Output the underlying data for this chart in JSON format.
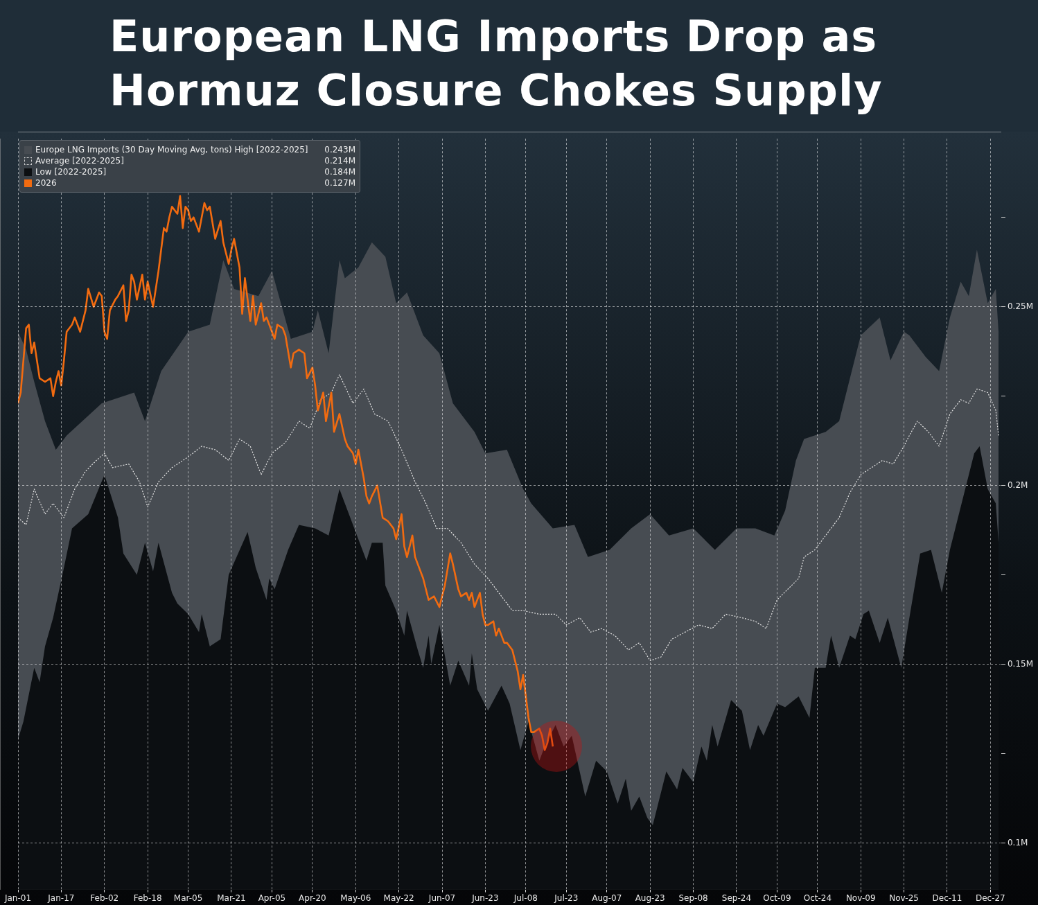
{
  "chart_data": {
    "type": "line",
    "title": "European LNG Imports Drop as Hormuz Closure Chokes Supply",
    "xlim": [
      "--01-01",
      "--12-31"
    ],
    "xticks": [
      {
        "value": "--01-01",
        "label": "Jan-01"
      },
      {
        "value": "--01-17",
        "label": "Jan-17"
      },
      {
        "value": "--02-02",
        "label": "Feb-02"
      },
      {
        "value": "--02-18",
        "label": "Feb-18"
      },
      {
        "value": "--03-05",
        "label": "Mar-05"
      },
      {
        "value": "--03-21",
        "label": "Mar-21"
      },
      {
        "value": "--04-05",
        "label": "Apr-05"
      },
      {
        "value": "--04-20",
        "label": "Apr-20"
      },
      {
        "value": "--05-06",
        "label": "May-06"
      },
      {
        "value": "--05-22",
        "label": "May-22"
      },
      {
        "value": "--06-07",
        "label": "Jun-07"
      },
      {
        "value": "--06-23",
        "label": "Jun-23"
      },
      {
        "value": "--07-08",
        "label": "Jul-08"
      },
      {
        "value": "--07-23",
        "label": "Jul-23"
      },
      {
        "value": "--08-07",
        "label": "Aug-07"
      },
      {
        "value": "--08-23",
        "label": "Aug-23"
      },
      {
        "value": "--09-08",
        "label": "Sep-08"
      },
      {
        "value": "--09-24",
        "label": "Sep-24"
      },
      {
        "value": "--10-09",
        "label": "Oct-09"
      },
      {
        "value": "--10-24",
        "label": "Oct-24"
      },
      {
        "value": "--11-09",
        "label": "Nov-09"
      },
      {
        "value": "--11-25",
        "label": "Nov-25"
      },
      {
        "value": "--12-11",
        "label": "Dec-11"
      },
      {
        "value": "--12-27",
        "label": "Dec-27"
      }
    ],
    "ylim": [
      0.087,
      0.297
    ],
    "yticks": [
      {
        "value": 0.1,
        "label": "0.1M"
      },
      {
        "value": 0.125,
        "label": null
      },
      {
        "value": 0.15,
        "label": "0.15M"
      },
      {
        "value": 0.175,
        "label": null
      },
      {
        "value": 0.2,
        "label": "0.2M"
      },
      {
        "value": 0.225,
        "label": null
      },
      {
        "value": 0.25,
        "label": "0.25M"
      },
      {
        "value": 0.275,
        "label": null
      }
    ],
    "grid": true,
    "legend": "top left",
    "marker": "none",
    "annotations": [
      "0.243M",
      "0.214M",
      "0.184M",
      "0.127M"
    ],
    "series": [
      {
        "name": "Europe LNG Imports (30 Day Moving Avg, tons) High [2022-2025]",
        "type": "area",
        "color": "#474c52",
        "x": [
          "--01-01",
          "--01-04",
          "--01-07",
          "--01-11",
          "--01-15",
          "--01-19",
          "--02-01",
          "--02-13",
          "--02-17",
          "--02-23",
          "--03-05",
          "--03-13",
          "--03-18",
          "--03-22",
          "--03-31",
          "--04-05",
          "--04-12",
          "--04-20",
          "--04-22",
          "--04-26",
          "--04-30",
          "--05-02",
          "--05-07",
          "--05-12",
          "--05-17",
          "--05-21",
          "--05-25",
          "--05-31",
          "--06-06",
          "--06-11",
          "--06-19",
          "--06-23",
          "--07-01",
          "--07-07",
          "--07-10",
          "--07-18",
          "--07-26",
          "--07-31",
          "--08-08",
          "--08-16",
          "--08-23",
          "--08-30",
          "--09-08",
          "--09-16",
          "--09-24",
          "--10-01",
          "--10-08",
          "--10-12",
          "--10-16",
          "--10-19",
          "--10-27",
          "--11-01",
          "--11-05",
          "--11-09",
          "--11-16",
          "--11-20",
          "--11-25",
          "--11-27",
          "--12-03",
          "--12-08",
          "--12-12",
          "--12-16",
          "--12-19",
          "--12-22",
          "--12-26",
          "--12-29",
          "--12-30"
        ],
        "values": [
          0.243,
          0.238,
          0.229,
          0.218,
          0.21,
          0.214,
          0.223,
          0.226,
          0.218,
          0.232,
          0.243,
          0.245,
          0.263,
          0.255,
          0.253,
          0.26,
          0.241,
          0.243,
          0.249,
          0.237,
          0.263,
          0.258,
          0.261,
          0.268,
          0.264,
          0.251,
          0.254,
          0.242,
          0.237,
          0.223,
          0.215,
          0.209,
          0.21,
          0.199,
          0.195,
          0.188,
          0.189,
          0.18,
          0.182,
          0.188,
          0.192,
          0.186,
          0.188,
          0.182,
          0.188,
          0.188,
          0.186,
          0.193,
          0.207,
          0.213,
          0.215,
          0.218,
          0.23,
          0.242,
          0.247,
          0.235,
          0.243,
          0.242,
          0.236,
          0.232,
          0.247,
          0.257,
          0.253,
          0.266,
          0.251,
          0.255,
          0.243
        ]
      },
      {
        "name": "Average [2022-2025]",
        "type": "line",
        "line_style": "dotted",
        "color": "#e4e4e4",
        "x": [
          "--01-01",
          "--01-04",
          "--01-07",
          "--01-11",
          "--01-14",
          "--01-18",
          "--01-22",
          "--01-26",
          "--01-30",
          "--02-02",
          "--02-05",
          "--02-11",
          "--02-15",
          "--02-18",
          "--02-22",
          "--02-27",
          "--03-05",
          "--03-10",
          "--03-15",
          "--03-20",
          "--03-24",
          "--03-28",
          "--04-01",
          "--04-05",
          "--04-10",
          "--04-15",
          "--04-19",
          "--04-23",
          "--04-27",
          "--04-30",
          "--05-05",
          "--05-09",
          "--05-13",
          "--05-18",
          "--05-23",
          "--05-28",
          "--06-01",
          "--06-05",
          "--06-09",
          "--06-14",
          "--06-19",
          "--06-24",
          "--06-28",
          "--07-03",
          "--07-07",
          "--07-13",
          "--07-19",
          "--07-23",
          "--07-28",
          "--08-01",
          "--08-05",
          "--08-10",
          "--08-15",
          "--08-19",
          "--08-23",
          "--08-27",
          "--08-31",
          "--09-05",
          "--09-10",
          "--09-15",
          "--09-20",
          "--09-26",
          "--10-01",
          "--10-05",
          "--10-09",
          "--10-13",
          "--10-17",
          "--10-19",
          "--10-23",
          "--10-27",
          "--11-01",
          "--11-05",
          "--11-09",
          "--11-13",
          "--11-17",
          "--11-21",
          "--11-25",
          "--11-27",
          "--11-30",
          "--12-04",
          "--12-08",
          "--12-12",
          "--12-16",
          "--12-19",
          "--12-22",
          "--12-26",
          "--12-29",
          "--12-30"
        ],
        "values": [
          0.191,
          0.189,
          0.199,
          0.192,
          0.195,
          0.191,
          0.199,
          0.204,
          0.207,
          0.209,
          0.205,
          0.206,
          0.201,
          0.194,
          0.201,
          0.205,
          0.208,
          0.211,
          0.21,
          0.207,
          0.213,
          0.211,
          0.203,
          0.209,
          0.212,
          0.218,
          0.216,
          0.224,
          0.226,
          0.231,
          0.223,
          0.227,
          0.22,
          0.218,
          0.21,
          0.201,
          0.195,
          0.188,
          0.188,
          0.184,
          0.178,
          0.174,
          0.17,
          0.165,
          0.165,
          0.164,
          0.164,
          0.161,
          0.163,
          0.159,
          0.16,
          0.158,
          0.154,
          0.156,
          0.151,
          0.152,
          0.157,
          0.159,
          0.161,
          0.16,
          0.164,
          0.163,
          0.162,
          0.16,
          0.168,
          0.171,
          0.174,
          0.18,
          0.182,
          0.186,
          0.191,
          0.198,
          0.203,
          0.205,
          0.207,
          0.206,
          0.211,
          0.214,
          0.218,
          0.215,
          0.211,
          0.22,
          0.224,
          0.223,
          0.227,
          0.226,
          0.221,
          0.214
        ]
      },
      {
        "name": "Low [2022-2025]",
        "type": "area",
        "color": "#0c0f12",
        "x": [
          "--01-01",
          "--01-03",
          "--01-07",
          "--01-09",
          "--01-11",
          "--01-14",
          "--01-18",
          "--01-21",
          "--01-27",
          "--02-02",
          "--02-07",
          "--02-09",
          "--02-14",
          "--02-17",
          "--02-20",
          "--02-22",
          "--02-27",
          "--03-01",
          "--03-05",
          "--03-09",
          "--03-10",
          "--03-13",
          "--03-17",
          "--03-20",
          "--03-27",
          "--03-30",
          "--04-03",
          "--04-04",
          "--04-06",
          "--04-11",
          "--04-15",
          "--04-21",
          "--04-26",
          "--04-30",
          "--05-06",
          "--05-10",
          "--05-12",
          "--05-16",
          "--05-17",
          "--05-21",
          "--05-24",
          "--05-25",
          "--05-29",
          "--05-31",
          "--06-02",
          "--06-03",
          "--06-06",
          "--06-10",
          "--06-13",
          "--06-17",
          "--06-18",
          "--06-20",
          "--06-24",
          "--06-29",
          "--07-02",
          "--07-06",
          "--07-09",
          "--07-13",
          "--07-15",
          "--07-19",
          "--07-22",
          "--07-25",
          "--07-30",
          "--08-03",
          "--08-07",
          "--08-11",
          "--08-14",
          "--08-16",
          "--08-19",
          "--08-22",
          "--08-24",
          "--08-29",
          "--09-02",
          "--09-04",
          "--09-08",
          "--09-11",
          "--09-13",
          "--09-15",
          "--09-17",
          "--09-22",
          "--09-26",
          "--09-29",
          "--10-02",
          "--10-04",
          "--10-09",
          "--10-12",
          "--10-17",
          "--10-21",
          "--10-23",
          "--10-27",
          "--10-29",
          "--11-01",
          "--11-05",
          "--11-07",
          "--11-10",
          "--11-12",
          "--11-16",
          "--11-19",
          "--11-24",
          "--11-27",
          "--12-01",
          "--12-05",
          "--12-09",
          "--12-12",
          "--12-15",
          "--12-21",
          "--12-23",
          "--12-26",
          "--12-29",
          "--12-30"
        ],
        "values": [
          0.129,
          0.134,
          0.149,
          0.145,
          0.155,
          0.163,
          0.177,
          0.188,
          0.192,
          0.203,
          0.191,
          0.181,
          0.175,
          0.184,
          0.176,
          0.184,
          0.17,
          0.167,
          0.164,
          0.159,
          0.164,
          0.155,
          0.157,
          0.175,
          0.187,
          0.177,
          0.168,
          0.174,
          0.171,
          0.182,
          0.189,
          0.188,
          0.186,
          0.199,
          0.187,
          0.179,
          0.184,
          0.184,
          0.172,
          0.165,
          0.158,
          0.165,
          0.154,
          0.149,
          0.158,
          0.15,
          0.161,
          0.144,
          0.151,
          0.144,
          0.153,
          0.143,
          0.137,
          0.144,
          0.139,
          0.126,
          0.134,
          0.123,
          0.127,
          0.133,
          0.127,
          0.13,
          0.113,
          0.123,
          0.12,
          0.111,
          0.118,
          0.109,
          0.113,
          0.107,
          0.105,
          0.12,
          0.115,
          0.121,
          0.117,
          0.127,
          0.123,
          0.133,
          0.127,
          0.14,
          0.137,
          0.126,
          0.133,
          0.13,
          0.139,
          0.138,
          0.141,
          0.135,
          0.149,
          0.149,
          0.158,
          0.149,
          0.158,
          0.157,
          0.164,
          0.165,
          0.156,
          0.163,
          0.149,
          0.163,
          0.181,
          0.182,
          0.17,
          0.182,
          0.191,
          0.209,
          0.211,
          0.199,
          0.195,
          0.184
        ]
      },
      {
        "name": "2026",
        "type": "line",
        "line_style": "solid",
        "color": "#f26b10",
        "x": [
          "--01-01",
          "--01-02",
          "--01-04",
          "--01-05",
          "--01-06",
          "--01-07",
          "--01-09",
          "--01-11",
          "--01-13",
          "--01-14",
          "--01-15",
          "--01-16",
          "--01-17",
          "--01-18",
          "--01-19",
          "--01-21",
          "--01-22",
          "--01-24",
          "--01-26",
          "--01-27",
          "--01-29",
          "--01-31",
          "--02-01",
          "--02-02",
          "--02-03",
          "--02-04",
          "--02-06",
          "--02-07",
          "--02-09",
          "--02-10",
          "--02-11",
          "--02-12",
          "--02-13",
          "--02-14",
          "--02-16",
          "--02-17",
          "--02-18",
          "--02-20",
          "--02-22",
          "--02-24",
          "--02-25",
          "--02-26",
          "--02-27",
          "--03-01",
          "--03-02",
          "--03-03",
          "--03-04",
          "--03-05",
          "--03-06",
          "--03-07",
          "--03-09",
          "--03-11",
          "--03-12",
          "--03-13",
          "--03-15",
          "--03-17",
          "--03-18",
          "--03-20",
          "--03-21",
          "--03-22",
          "--03-24",
          "--03-25",
          "--03-26",
          "--03-28",
          "--03-29",
          "--03-30",
          "--04-01",
          "--04-02",
          "--04-03",
          "--04-05",
          "--04-06",
          "--04-07",
          "--04-09",
          "--04-10",
          "--04-12",
          "--04-13",
          "--04-15",
          "--04-17",
          "--04-18",
          "--04-20",
          "--04-21",
          "--04-22",
          "--04-24",
          "--04-25",
          "--04-27",
          "--04-28",
          "--04-30",
          "--05-02",
          "--05-03",
          "--05-05",
          "--05-06",
          "--05-07",
          "--05-09",
          "--05-10",
          "--05-11",
          "--05-12",
          "--05-14",
          "--05-16",
          "--05-18",
          "--05-20",
          "--05-21",
          "--05-23",
          "--05-24",
          "--05-25",
          "--05-27",
          "--05-28",
          "--05-29",
          "--05-31",
          "--06-02",
          "--06-04",
          "--06-06",
          "--06-08",
          "--06-10",
          "--06-11",
          "--06-13",
          "--06-14",
          "--06-16",
          "--06-17",
          "--06-18",
          "--06-19",
          "--06-21",
          "--06-22",
          "--06-23",
          "--06-24",
          "--06-26",
          "--06-27",
          "--06-28",
          "--06-30",
          "--07-01",
          "--07-02",
          "--07-03",
          "--07-05",
          "--07-06",
          "--07-07",
          "--07-08",
          "--07-09",
          "--07-10",
          "--07-11",
          "--07-13",
          "--07-14",
          "--07-15",
          "--07-16",
          "--07-17",
          "--07-18"
        ],
        "values": [
          0.223,
          0.226,
          0.244,
          0.245,
          0.237,
          0.24,
          0.23,
          0.229,
          0.23,
          0.225,
          0.229,
          0.232,
          0.228,
          0.235,
          0.243,
          0.245,
          0.247,
          0.243,
          0.249,
          0.255,
          0.25,
          0.254,
          0.253,
          0.243,
          0.241,
          0.249,
          0.252,
          0.253,
          0.256,
          0.246,
          0.249,
          0.259,
          0.257,
          0.252,
          0.259,
          0.252,
          0.257,
          0.25,
          0.26,
          0.272,
          0.271,
          0.275,
          0.278,
          0.276,
          0.281,
          0.272,
          0.278,
          0.277,
          0.274,
          0.275,
          0.271,
          0.279,
          0.277,
          0.278,
          0.269,
          0.274,
          0.268,
          0.262,
          0.266,
          0.269,
          0.261,
          0.248,
          0.258,
          0.246,
          0.253,
          0.245,
          0.251,
          0.246,
          0.247,
          0.243,
          0.241,
          0.245,
          0.244,
          0.242,
          0.233,
          0.237,
          0.238,
          0.237,
          0.23,
          0.233,
          0.228,
          0.221,
          0.226,
          0.218,
          0.226,
          0.215,
          0.22,
          0.213,
          0.211,
          0.209,
          0.206,
          0.21,
          0.202,
          0.197,
          0.195,
          0.197,
          0.2,
          0.191,
          0.19,
          0.188,
          0.185,
          0.192,
          0.183,
          0.18,
          0.186,
          0.18,
          0.178,
          0.174,
          0.168,
          0.169,
          0.166,
          0.172,
          0.181,
          0.178,
          0.171,
          0.169,
          0.17,
          0.168,
          0.17,
          0.166,
          0.17,
          0.164,
          0.161,
          0.161,
          0.162,
          0.158,
          0.16,
          0.156,
          0.156,
          0.155,
          0.154,
          0.148,
          0.143,
          0.147,
          0.141,
          0.135,
          0.131,
          0.131,
          0.132,
          0.13,
          0.126,
          0.128,
          0.132,
          0.127
        ]
      }
    ]
  }
}
